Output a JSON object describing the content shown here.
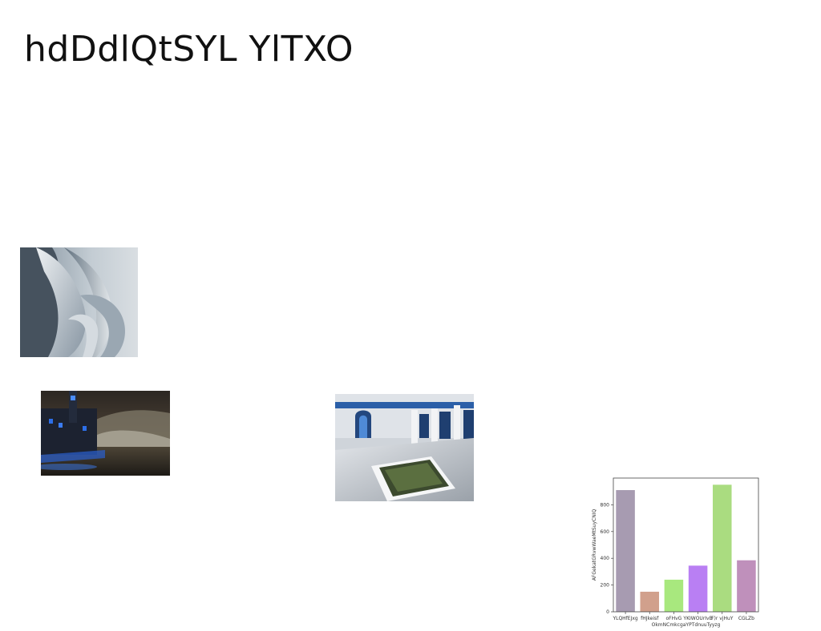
{
  "page": {
    "title": "hdDdlQtSYL YlTXO"
  },
  "images": {
    "sculpture": "abstract white sculpture photo",
    "lighthouse": "coastal building at night photo",
    "courtyard": "tiled courtyard with pool render"
  },
  "chart_data": {
    "type": "bar",
    "categories": [
      "YLQHfEJxg",
      "fHJkeisf",
      "oFHvG",
      "YKIWOUrIvB",
      "F)r vjHuY",
      "CGLZb"
    ],
    "values": [
      910,
      150,
      240,
      345,
      950,
      385
    ],
    "colors": [
      "#a79bb1",
      "#d1a08c",
      "#a8e87e",
      "#b97ff3",
      "#aadc80",
      "#bf90bb"
    ],
    "title": "",
    "xlabel": "OkmNCmkcgaYPTdnuuTyyzg",
    "ylabel": "AFGekatGRvwWaeMtSuyCNIQ",
    "ylim": [
      0,
      1000
    ],
    "yticks": [
      0,
      200,
      400,
      600,
      800
    ],
    "grid": false
  }
}
